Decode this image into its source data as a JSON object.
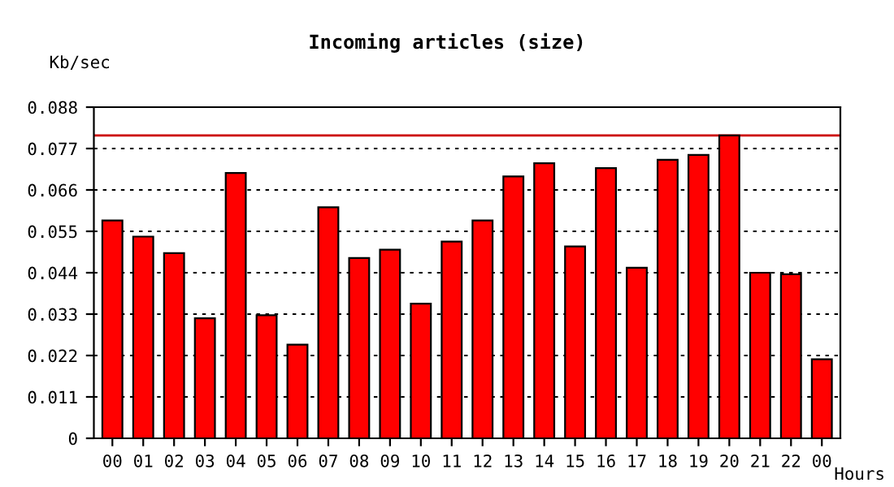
{
  "chart_data": {
    "type": "bar",
    "title": "Incoming articles (size)",
    "ylabel": "Kb/sec",
    "xlabel": "Hours",
    "categories": [
      "00",
      "01",
      "02",
      "03",
      "04",
      "05",
      "06",
      "07",
      "08",
      "09",
      "10",
      "11",
      "12",
      "13",
      "14",
      "15",
      "16",
      "17",
      "18",
      "19",
      "20",
      "21",
      "22",
      "00"
    ],
    "values": [
      0.0579,
      0.0536,
      0.0492,
      0.0319,
      0.0705,
      0.0327,
      0.0249,
      0.0614,
      0.0479,
      0.0501,
      0.0358,
      0.0523,
      0.0579,
      0.0696,
      0.0731,
      0.051,
      0.0718,
      0.0453,
      0.074,
      0.0753,
      0.0805,
      0.044,
      0.0436,
      0.021
    ],
    "color": "#ff0000",
    "ylim": [
      0,
      0.088
    ],
    "yticks": [
      0,
      0.011,
      0.022,
      0.033,
      0.044,
      0.055,
      0.066,
      0.077,
      0.088
    ],
    "grid": "y",
    "ref_lines": [
      {
        "axis": "y",
        "value": 0.0805,
        "color": "#cc0000",
        "line_style": "solid"
      }
    ]
  }
}
